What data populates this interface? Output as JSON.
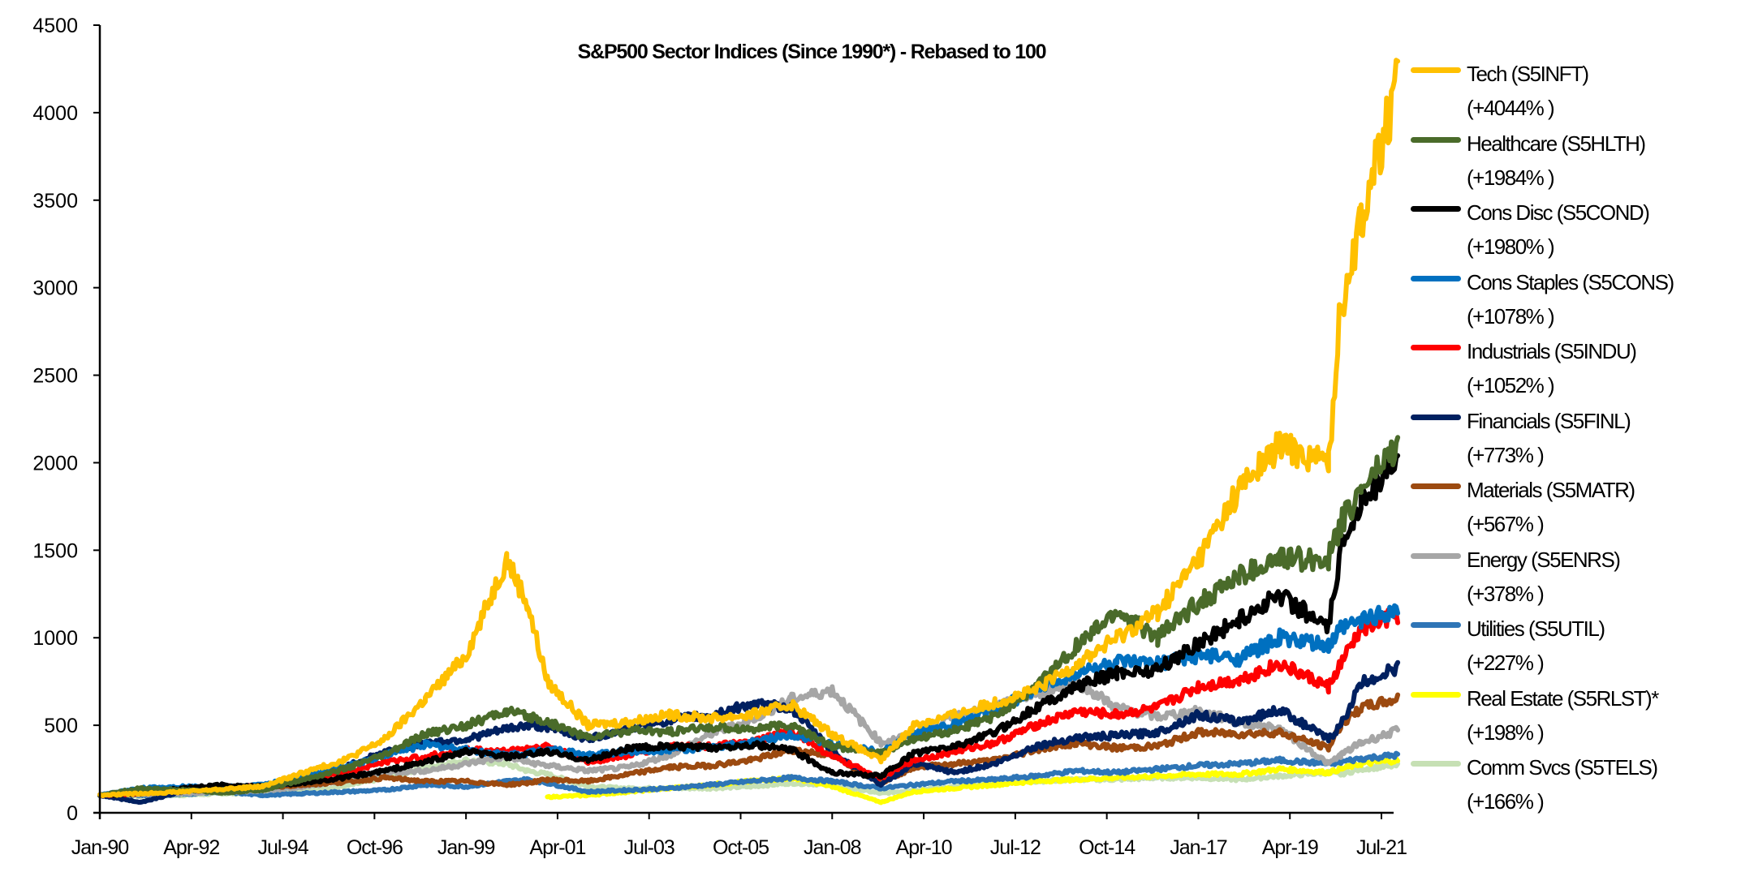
{
  "chart_data": {
    "type": "line",
    "title": "S&P500 Sector Indices (Since 1990*) - Rebased to 100",
    "xlabel": "",
    "ylabel": "",
    "ylim": [
      0,
      4500
    ],
    "yticks": [
      0,
      500,
      1000,
      1500,
      2000,
      2500,
      3000,
      3500,
      4000,
      4500
    ],
    "xticks": [
      "Jan-90",
      "Apr-92",
      "Jul-94",
      "Oct-96",
      "Jan-99",
      "Apr-01",
      "Jul-03",
      "Oct-05",
      "Jan-08",
      "Apr-10",
      "Jul-12",
      "Oct-14",
      "Jan-17",
      "Apr-19",
      "Jul-21"
    ],
    "xrange": [
      1990.0,
      2021.9
    ],
    "grid": false,
    "legend_position": "right",
    "x": [
      1990,
      1991,
      1992,
      1993,
      1994,
      1995,
      1996,
      1997,
      1998,
      1999,
      2000,
      2000.5,
      2001,
      2002,
      2003,
      2004,
      2005,
      2006,
      2007,
      2008,
      2009.2,
      2010,
      2011,
      2012,
      2013,
      2014,
      2015,
      2016,
      2017,
      2018,
      2019,
      2020.2,
      2020.5,
      2021,
      2021.9
    ],
    "series": [
      {
        "name": "Tech (S5INFT)",
        "change": "(+4044% )",
        "color": "#FFC000",
        "values": [
          100,
          110,
          120,
          135,
          150,
          230,
          300,
          420,
          650,
          900,
          1450,
          1200,
          750,
          500,
          520,
          560,
          540,
          560,
          620,
          450,
          300,
          500,
          560,
          630,
          700,
          850,
          1000,
          1150,
          1450,
          1850,
          2100,
          2000,
          2900,
          3400,
          4150
        ]
      },
      {
        "name": "Healthcare (S5HLTH)",
        "change": "(+1984% )",
        "color": "#4A6B2A",
        "values": [
          100,
          140,
          130,
          115,
          130,
          190,
          250,
          330,
          450,
          500,
          580,
          550,
          520,
          430,
          470,
          460,
          490,
          480,
          500,
          380,
          340,
          420,
          470,
          550,
          720,
          950,
          1150,
          1000,
          1200,
          1350,
          1450,
          1450,
          1650,
          1850,
          2100
        ]
      },
      {
        "name": "Cons Disc (S5COND)",
        "change": "(+1980% )",
        "color": "#000000",
        "values": [
          100,
          110,
          140,
          160,
          150,
          170,
          200,
          240,
          290,
          350,
          320,
          330,
          350,
          300,
          370,
          380,
          370,
          390,
          360,
          230,
          210,
          340,
          380,
          460,
          600,
          720,
          800,
          820,
          970,
          1100,
          1250,
          1050,
          1500,
          1800,
          2000
        ]
      },
      {
        "name": "Cons Staples (S5CONS)",
        "change": "(+1078% )",
        "color": "#0070C0",
        "values": [
          100,
          140,
          150,
          145,
          160,
          210,
          260,
          330,
          390,
          360,
          330,
          340,
          370,
          330,
          350,
          360,
          370,
          400,
          450,
          390,
          350,
          450,
          510,
          590,
          700,
          800,
          860,
          850,
          900,
          880,
          1000,
          950,
          1050,
          1100,
          1170
        ]
      },
      {
        "name": "Industrials (S5INDU)",
        "change": "(+1052% )",
        "color": "#FF0000",
        "values": [
          100,
          110,
          130,
          150,
          150,
          190,
          230,
          290,
          320,
          360,
          350,
          370,
          380,
          290,
          330,
          380,
          380,
          400,
          470,
          320,
          200,
          300,
          350,
          400,
          500,
          580,
          560,
          600,
          720,
          760,
          850,
          720,
          850,
          1050,
          1130
        ]
      },
      {
        "name": "Financials (S5FINL)",
        "change": "(+773% )",
        "color": "#002060",
        "values": [
          100,
          60,
          120,
          140,
          140,
          190,
          260,
          350,
          400,
          420,
          480,
          500,
          490,
          420,
          480,
          530,
          560,
          620,
          600,
          350,
          160,
          280,
          230,
          280,
          380,
          430,
          440,
          460,
          560,
          520,
          590,
          420,
          500,
          740,
          830
        ]
      },
      {
        "name": "Materials (S5MATR)",
        "change": "(+567% )",
        "color": "#9C4A10",
        "values": [
          100,
          110,
          125,
          130,
          140,
          160,
          175,
          200,
          180,
          180,
          160,
          170,
          190,
          180,
          220,
          260,
          270,
          300,
          360,
          330,
          170,
          260,
          280,
          300,
          360,
          400,
          370,
          380,
          460,
          450,
          460,
          370,
          500,
          600,
          650
        ]
      },
      {
        "name": "Energy (S5ENRS)",
        "change": "(+378% )",
        "color": "#A6A6A6",
        "values": [
          100,
          105,
          110,
          120,
          125,
          150,
          180,
          230,
          240,
          280,
          320,
          290,
          270,
          240,
          260,
          330,
          450,
          530,
          650,
          700,
          400,
          450,
          550,
          600,
          680,
          750,
          600,
          550,
          580,
          520,
          480,
          280,
          330,
          400,
          470
        ]
      },
      {
        "name": "Utilities (S5UTIL)",
        "change": "(+227% )",
        "color": "#2E75B6",
        "values": [
          100,
          100,
          105,
          120,
          100,
          110,
          120,
          130,
          160,
          150,
          180,
          190,
          170,
          120,
          130,
          140,
          160,
          180,
          200,
          180,
          140,
          160,
          180,
          190,
          210,
          240,
          230,
          250,
          270,
          280,
          300,
          280,
          290,
          310,
          330
        ]
      },
      {
        "name": "Real Estate (S5RLST)*",
        "change": "(+198% )",
        "color": "#FFFF00",
        "values": [
          null,
          null,
          null,
          null,
          null,
          null,
          null,
          null,
          null,
          null,
          null,
          null,
          90,
          100,
          120,
          140,
          160,
          180,
          200,
          150,
          60,
          120,
          140,
          160,
          180,
          190,
          200,
          210,
          220,
          220,
          250,
          230,
          250,
          280,
          300
        ]
      },
      {
        "name": "Comm Svcs (S5TELS)",
        "change": "(+166% )",
        "color": "#C6E0B4",
        "values": [
          100,
          95,
          100,
          110,
          110,
          130,
          150,
          200,
          260,
          300,
          280,
          240,
          220,
          150,
          140,
          140,
          140,
          150,
          170,
          160,
          110,
          130,
          150,
          170,
          180,
          190,
          190,
          200,
          200,
          190,
          210,
          230,
          220,
          250,
          270
        ]
      }
    ]
  }
}
